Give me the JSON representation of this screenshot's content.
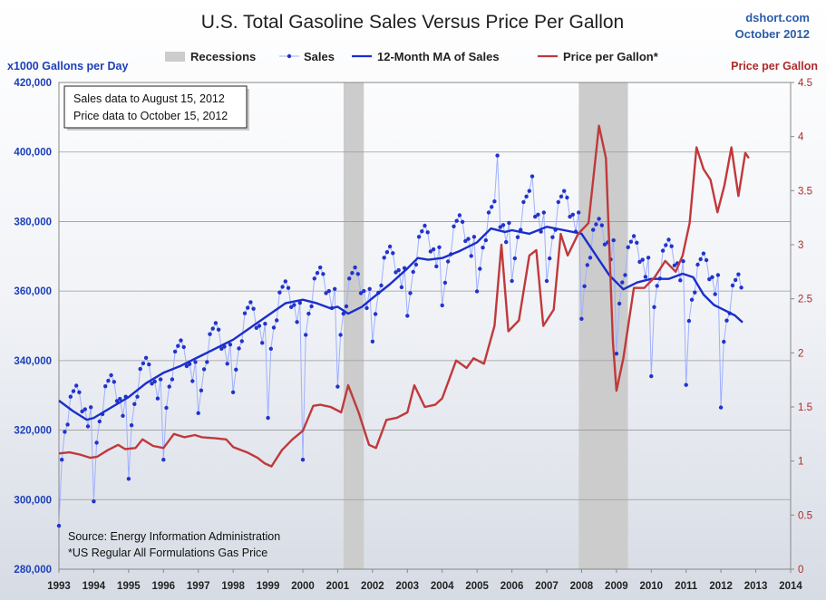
{
  "chart_data": {
    "type": "line",
    "title": "U.S. Total Gasoline Sales Versus Price Per Gallon",
    "source_label": "dshort.com",
    "date_label": "October 2012",
    "y_left_label": "x1000 Gallons per Day",
    "y_right_label": "Price per Gallon",
    "y_left_lim": [
      280000,
      420000
    ],
    "y_left_ticks": [
      280000,
      300000,
      320000,
      340000,
      360000,
      380000,
      400000,
      420000
    ],
    "y_left_tick_labels": [
      "280,000",
      "300,000",
      "320,000",
      "340,000",
      "360,000",
      "380,000",
      "400,000",
      "420,000"
    ],
    "y_right_lim": [
      0,
      4.5
    ],
    "y_right_ticks": [
      0,
      0.5,
      1,
      1.5,
      2,
      2.5,
      3,
      3.5,
      4,
      4.5
    ],
    "y_right_tick_labels": [
      "0",
      "0.5",
      "1",
      "1.5",
      "2",
      "2.5",
      "3",
      "3.5",
      "4",
      "4.5"
    ],
    "x_lim": [
      1993,
      2014
    ],
    "x_tick_labels": [
      "1993",
      "1994",
      "1995",
      "1996",
      "1997",
      "1998",
      "1999",
      "2000",
      "2001",
      "2002",
      "2003",
      "2004",
      "2005",
      "2006",
      "2007",
      "2008",
      "2009",
      "2010",
      "2011",
      "2012",
      "2013",
      "2014"
    ],
    "legend": [
      {
        "label": "Recessions",
        "color": "#cccccc"
      },
      {
        "label": "Sales",
        "color": "#2233cc"
      },
      {
        "label": "12-Month MA of Sales",
        "color": "#1a2ecc"
      },
      {
        "label": "Price per Gallon*",
        "color": "#c0393b"
      }
    ],
    "recessions": [
      [
        2001.17,
        2001.75
      ],
      [
        2007.92,
        2009.33
      ]
    ],
    "notes": [
      "Sales data to August 15, 2012",
      "Price data to October 15, 2012"
    ],
    "footnotes": [
      "Source: Energy Information Administration",
      "*US Regular All Formulations Gas Price"
    ],
    "series": [
      {
        "name": "Sales",
        "axis": "left",
        "seasonal_pattern": [
          -13000,
          -10000,
          -2500,
          1000,
          5500,
          8500,
          11500,
          11000,
          2000,
          4000,
          500,
          2500
        ],
        "annual_levels": [
          {
            "year": 1993,
            "level": 322000
          },
          {
            "year": 1994,
            "level": 325000
          },
          {
            "year": 1995,
            "level": 330000
          },
          {
            "year": 1996,
            "level": 335000
          },
          {
            "year": 1997,
            "level": 340000
          },
          {
            "year": 1998,
            "level": 346000
          },
          {
            "year": 1999,
            "level": 352000
          },
          {
            "year": 2000,
            "level": 356000
          },
          {
            "year": 2001,
            "level": 356000
          },
          {
            "year": 2002,
            "level": 362000
          },
          {
            "year": 2003,
            "level": 368000
          },
          {
            "year": 2004,
            "level": 371000
          },
          {
            "year": 2005,
            "level": 375000
          },
          {
            "year": 2006,
            "level": 378000
          },
          {
            "year": 2007,
            "level": 378000
          },
          {
            "year": 2008,
            "level": 370000
          },
          {
            "year": 2009,
            "level": 365000
          },
          {
            "year": 2010,
            "level": 364000
          },
          {
            "year": 2011,
            "level": 360000
          },
          {
            "year": 2012,
            "level": 354000
          }
        ],
        "overrides": [
          {
            "t": 1993.0,
            "v": 292500
          },
          {
            "t": 1993.08,
            "v": 311500
          },
          {
            "t": 1994.0,
            "v": 299500
          },
          {
            "t": 1995.0,
            "v": 306000
          },
          {
            "t": 1996.0,
            "v": 311500
          },
          {
            "t": 1999.0,
            "v": 323500
          },
          {
            "t": 2000.0,
            "v": 311500
          },
          {
            "t": 2001.0,
            "v": 332500
          },
          {
            "t": 2002.0,
            "v": 345500
          },
          {
            "t": 2005.58,
            "v": 399000
          },
          {
            "t": 2006.58,
            "v": 393000
          },
          {
            "t": 2008.0,
            "v": 352000
          },
          {
            "t": 2009.0,
            "v": 342000
          },
          {
            "t": 2010.0,
            "v": 335500
          },
          {
            "t": 2011.0,
            "v": 333000
          },
          {
            "t": 2012.0,
            "v": 326500
          },
          {
            "t": 2012.58,
            "v": 361000
          }
        ],
        "end": 2012.62
      },
      {
        "name": "12-Month MA of Sales",
        "axis": "left",
        "points": [
          [
            1993.0,
            328500
          ],
          [
            1993.4,
            325500
          ],
          [
            1993.8,
            323000
          ],
          [
            1994.0,
            323500
          ],
          [
            1994.5,
            326500
          ],
          [
            1995.0,
            329500
          ],
          [
            1995.5,
            333500
          ],
          [
            1996.0,
            336500
          ],
          [
            1996.5,
            338500
          ],
          [
            1997.0,
            341000
          ],
          [
            1997.5,
            343500
          ],
          [
            1998.0,
            346000
          ],
          [
            1998.5,
            349500
          ],
          [
            1999.0,
            353000
          ],
          [
            1999.5,
            356500
          ],
          [
            2000.0,
            357500
          ],
          [
            2000.4,
            356500
          ],
          [
            2000.8,
            355000
          ],
          [
            2001.0,
            355500
          ],
          [
            2001.3,
            353500
          ],
          [
            2001.7,
            355500
          ],
          [
            2002.0,
            358000
          ],
          [
            2002.5,
            362000
          ],
          [
            2003.0,
            366500
          ],
          [
            2003.3,
            369500
          ],
          [
            2003.6,
            369000
          ],
          [
            2004.0,
            369500
          ],
          [
            2004.5,
            371500
          ],
          [
            2005.0,
            374000
          ],
          [
            2005.4,
            378000
          ],
          [
            2005.8,
            377000
          ],
          [
            2006.0,
            377500
          ],
          [
            2006.5,
            376500
          ],
          [
            2007.0,
            378500
          ],
          [
            2007.5,
            377500
          ],
          [
            2008.0,
            376500
          ],
          [
            2008.4,
            370500
          ],
          [
            2008.8,
            364500
          ],
          [
            2009.2,
            360500
          ],
          [
            2009.6,
            362500
          ],
          [
            2010.0,
            363500
          ],
          [
            2010.5,
            363500
          ],
          [
            2010.9,
            365000
          ],
          [
            2011.2,
            364000
          ],
          [
            2011.5,
            359000
          ],
          [
            2011.8,
            356000
          ],
          [
            2012.1,
            354500
          ],
          [
            2012.4,
            353000
          ],
          [
            2012.62,
            351000
          ]
        ]
      },
      {
        "name": "Price per Gallon*",
        "axis": "right",
        "points": [
          [
            1993.0,
            1.07
          ],
          [
            1993.3,
            1.08
          ],
          [
            1993.6,
            1.06
          ],
          [
            1993.9,
            1.03
          ],
          [
            1994.1,
            1.04
          ],
          [
            1994.4,
            1.1
          ],
          [
            1994.7,
            1.15
          ],
          [
            1994.9,
            1.11
          ],
          [
            1995.2,
            1.12
          ],
          [
            1995.4,
            1.2
          ],
          [
            1995.7,
            1.14
          ],
          [
            1996.0,
            1.12
          ],
          [
            1996.3,
            1.25
          ],
          [
            1996.6,
            1.22
          ],
          [
            1996.9,
            1.24
          ],
          [
            1997.1,
            1.22
          ],
          [
            1997.5,
            1.21
          ],
          [
            1997.8,
            1.2
          ],
          [
            1998.0,
            1.13
          ],
          [
            1998.4,
            1.08
          ],
          [
            1998.7,
            1.03
          ],
          [
            1998.9,
            0.98
          ],
          [
            1999.1,
            0.95
          ],
          [
            1999.4,
            1.1
          ],
          [
            1999.7,
            1.2
          ],
          [
            2000.0,
            1.28
          ],
          [
            2000.3,
            1.51
          ],
          [
            2000.5,
            1.52
          ],
          [
            2000.8,
            1.5
          ],
          [
            2001.1,
            1.45
          ],
          [
            2001.3,
            1.7
          ],
          [
            2001.6,
            1.45
          ],
          [
            2001.9,
            1.15
          ],
          [
            2002.1,
            1.12
          ],
          [
            2002.4,
            1.38
          ],
          [
            2002.7,
            1.4
          ],
          [
            2003.0,
            1.45
          ],
          [
            2003.2,
            1.7
          ],
          [
            2003.5,
            1.5
          ],
          [
            2003.8,
            1.52
          ],
          [
            2004.0,
            1.58
          ],
          [
            2004.4,
            1.93
          ],
          [
            2004.7,
            1.86
          ],
          [
            2004.9,
            1.95
          ],
          [
            2005.2,
            1.9
          ],
          [
            2005.5,
            2.25
          ],
          [
            2005.7,
            3.0
          ],
          [
            2005.9,
            2.2
          ],
          [
            2006.2,
            2.3
          ],
          [
            2006.5,
            2.9
          ],
          [
            2006.7,
            2.95
          ],
          [
            2006.9,
            2.25
          ],
          [
            2007.2,
            2.4
          ],
          [
            2007.4,
            3.1
          ],
          [
            2007.6,
            2.9
          ],
          [
            2007.9,
            3.1
          ],
          [
            2008.2,
            3.2
          ],
          [
            2008.5,
            4.1
          ],
          [
            2008.7,
            3.8
          ],
          [
            2008.9,
            2.1
          ],
          [
            2009.0,
            1.65
          ],
          [
            2009.2,
            1.95
          ],
          [
            2009.5,
            2.6
          ],
          [
            2009.8,
            2.6
          ],
          [
            2010.1,
            2.7
          ],
          [
            2010.4,
            2.85
          ],
          [
            2010.7,
            2.75
          ],
          [
            2010.9,
            2.9
          ],
          [
            2011.1,
            3.2
          ],
          [
            2011.3,
            3.9
          ],
          [
            2011.5,
            3.7
          ],
          [
            2011.7,
            3.6
          ],
          [
            2011.9,
            3.3
          ],
          [
            2012.1,
            3.55
          ],
          [
            2012.3,
            3.9
          ],
          [
            2012.5,
            3.45
          ],
          [
            2012.7,
            3.85
          ],
          [
            2012.8,
            3.8
          ]
        ]
      }
    ]
  }
}
